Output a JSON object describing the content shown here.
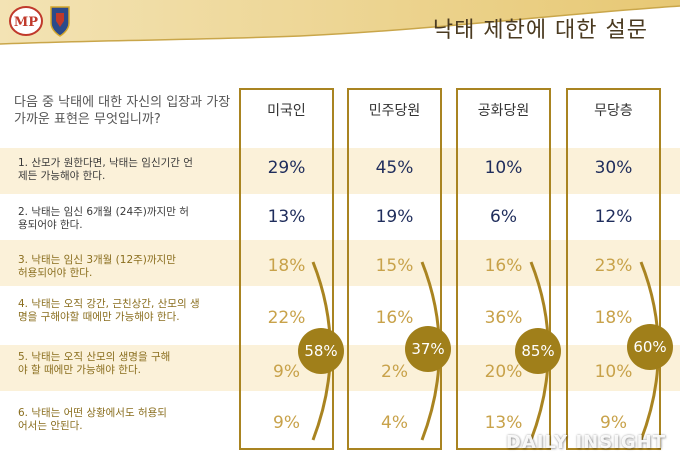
{
  "header": {
    "title": "낙태 제한에 대한 설문",
    "logo_text": "MP"
  },
  "chart_data": {
    "type": "table",
    "question": "다음 중 낙태에 대한 자신의 입장과 가장 가까운 표현은 무엇입니까?",
    "columns": [
      "미국인",
      "민주당원",
      "공화당원",
      "무당층"
    ],
    "rows": [
      {
        "label": "1. 산모가 원한다면, 낙태는 임신기간 언제든 가능해야 한다.",
        "values": [
          "29%",
          "45%",
          "10%",
          "30%"
        ]
      },
      {
        "label": "2. 낙태는 임신 6개월 (24주)까지만 허용되어야 한다.",
        "values": [
          "13%",
          "19%",
          "6%",
          "12%"
        ]
      },
      {
        "label": "3. 낙태는 임신 3개월 (12주)까지만 허용되어야 한다.",
        "values": [
          "18%",
          "15%",
          "16%",
          "23%"
        ]
      },
      {
        "label": "4. 낙태는 오직 강간, 근친상간, 산모의 생명을 구해야할 때에만 가능해야 한다.",
        "values": [
          "22%",
          "16%",
          "36%",
          "18%"
        ]
      },
      {
        "label": "5. 낙태는 오직 산모의 생명을 구해야 할 때에만 가능해야 한다.",
        "values": [
          "9%",
          "2%",
          "20%",
          "10%"
        ]
      },
      {
        "label": "6. 낙태는 어떤 상황에서도 허용되어서는 안된다.",
        "values": [
          "9%",
          "4%",
          "13%",
          "9%"
        ]
      }
    ],
    "group_totals": [
      "58%",
      "37%",
      "85%",
      "60%"
    ]
  },
  "colors": {
    "accent_gold": "#a98421",
    "band": "#fbf1d9",
    "strong_text": "#1f2d5c",
    "muted_text": "#c8a24a"
  },
  "watermark": "DAILY INSIGHT"
}
